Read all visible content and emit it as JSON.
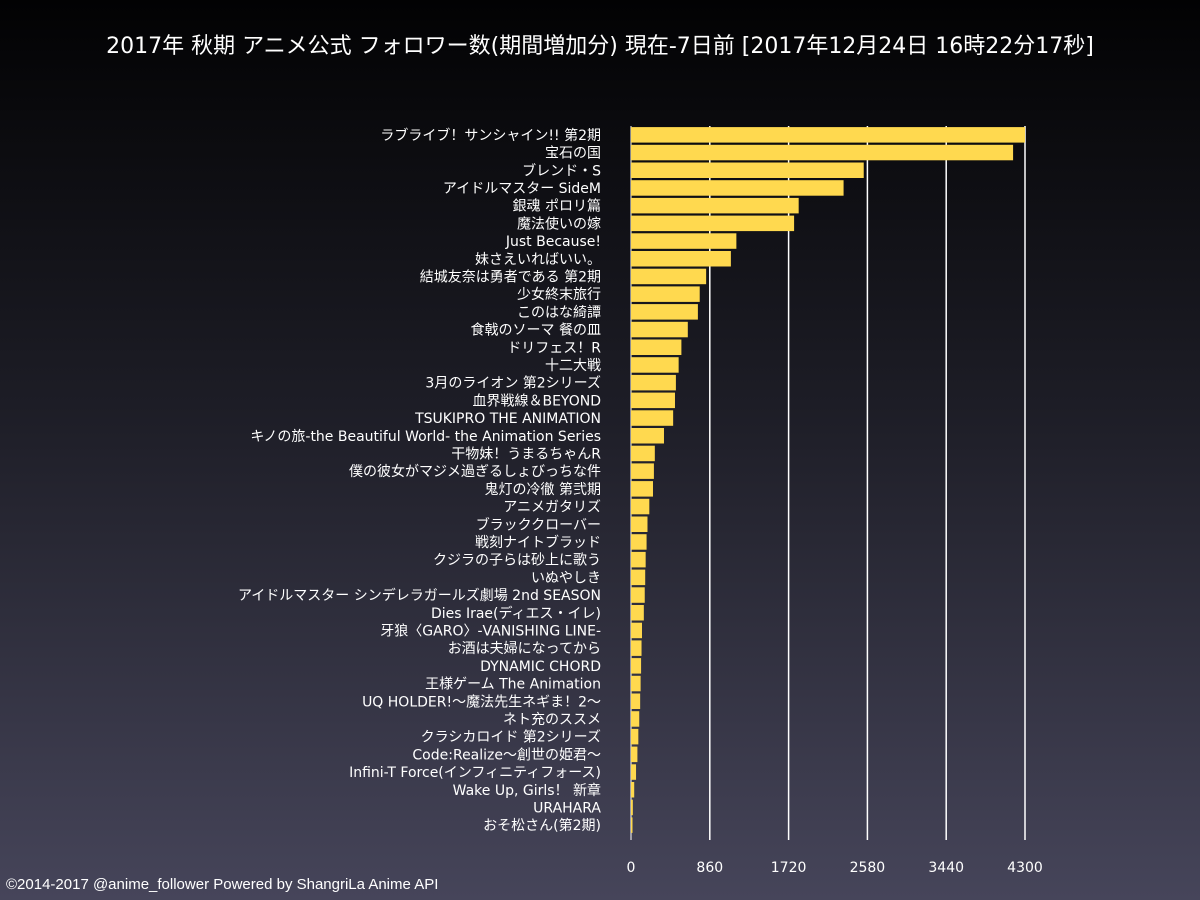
{
  "chart_data": {
    "type": "bar",
    "orientation": "horizontal",
    "title": "2017年 秋期 アニメ公式 フォロワー数(期間増加分) 現在-7日前 [2017年12月24日 16時22分17秒]",
    "xlabel": "",
    "ylabel": "",
    "xlim": [
      0,
      4300
    ],
    "x_ticks": [
      "0",
      "860",
      "1720",
      "2580",
      "3440",
      "4300"
    ],
    "grid": true,
    "bar_color": "#ffd94f",
    "categories": [
      "ラブライブ！サンシャイン!! 第2期",
      "宝石の国",
      "ブレンド・S",
      "アイドルマスター SideM",
      "銀魂 ポロリ篇",
      "魔法使いの嫁",
      "Just Because!",
      "妹さえいればいい。",
      "結城友奈は勇者である 第2期",
      "少女終末旅行",
      "このはな綺譚",
      "食戟のソーマ 餐の皿",
      "ドリフェス！R",
      "十二大戦",
      "3月のライオン 第2シリーズ",
      "血界戦線＆BEYOND",
      "TSUKIPRO THE ANIMATION",
      "キノの旅-the Beautiful World- the Animation Series",
      "干物妹！うまるちゃんR",
      "僕の彼女がマジメ過ぎるしょびっちな件",
      "鬼灯の冷徹 第弐期",
      "アニメガタリズ",
      "ブラッククローバー",
      "戦刻ナイトブラッド",
      "クジラの子らは砂上に歌う",
      "いぬやしき",
      "アイドルマスター シンデレラガールズ劇場 2nd SEASON",
      "Dies Irae(ディエス・イレ)",
      "牙狼〈GARO〉-VANISHING LINE-",
      "お酒は夫婦になってから",
      "DYNAMIC CHORD",
      "王様ゲーム The Animation",
      "UQ HOLDER!～魔法先生ネギま！2～",
      "ネト充のススメ",
      "クラシカロイド 第2シリーズ",
      "Code:Realize～創世の姫君～",
      "Infini-T Force(インフィニティフォース)",
      "Wake Up, Girls！ 新章",
      "URAHARA",
      "おそ松さん(第2期)"
    ],
    "values": [
      4300,
      4170,
      2540,
      2320,
      1830,
      1780,
      1150,
      1090,
      820,
      750,
      730,
      620,
      550,
      520,
      490,
      480,
      460,
      360,
      260,
      250,
      240,
      200,
      180,
      170,
      160,
      155,
      150,
      140,
      120,
      115,
      110,
      105,
      100,
      90,
      80,
      70,
      55,
      35,
      20,
      15
    ]
  },
  "footer": {
    "credit": "©2014-2017 @anime_follower Powered by ShangriLa Anime API"
  }
}
